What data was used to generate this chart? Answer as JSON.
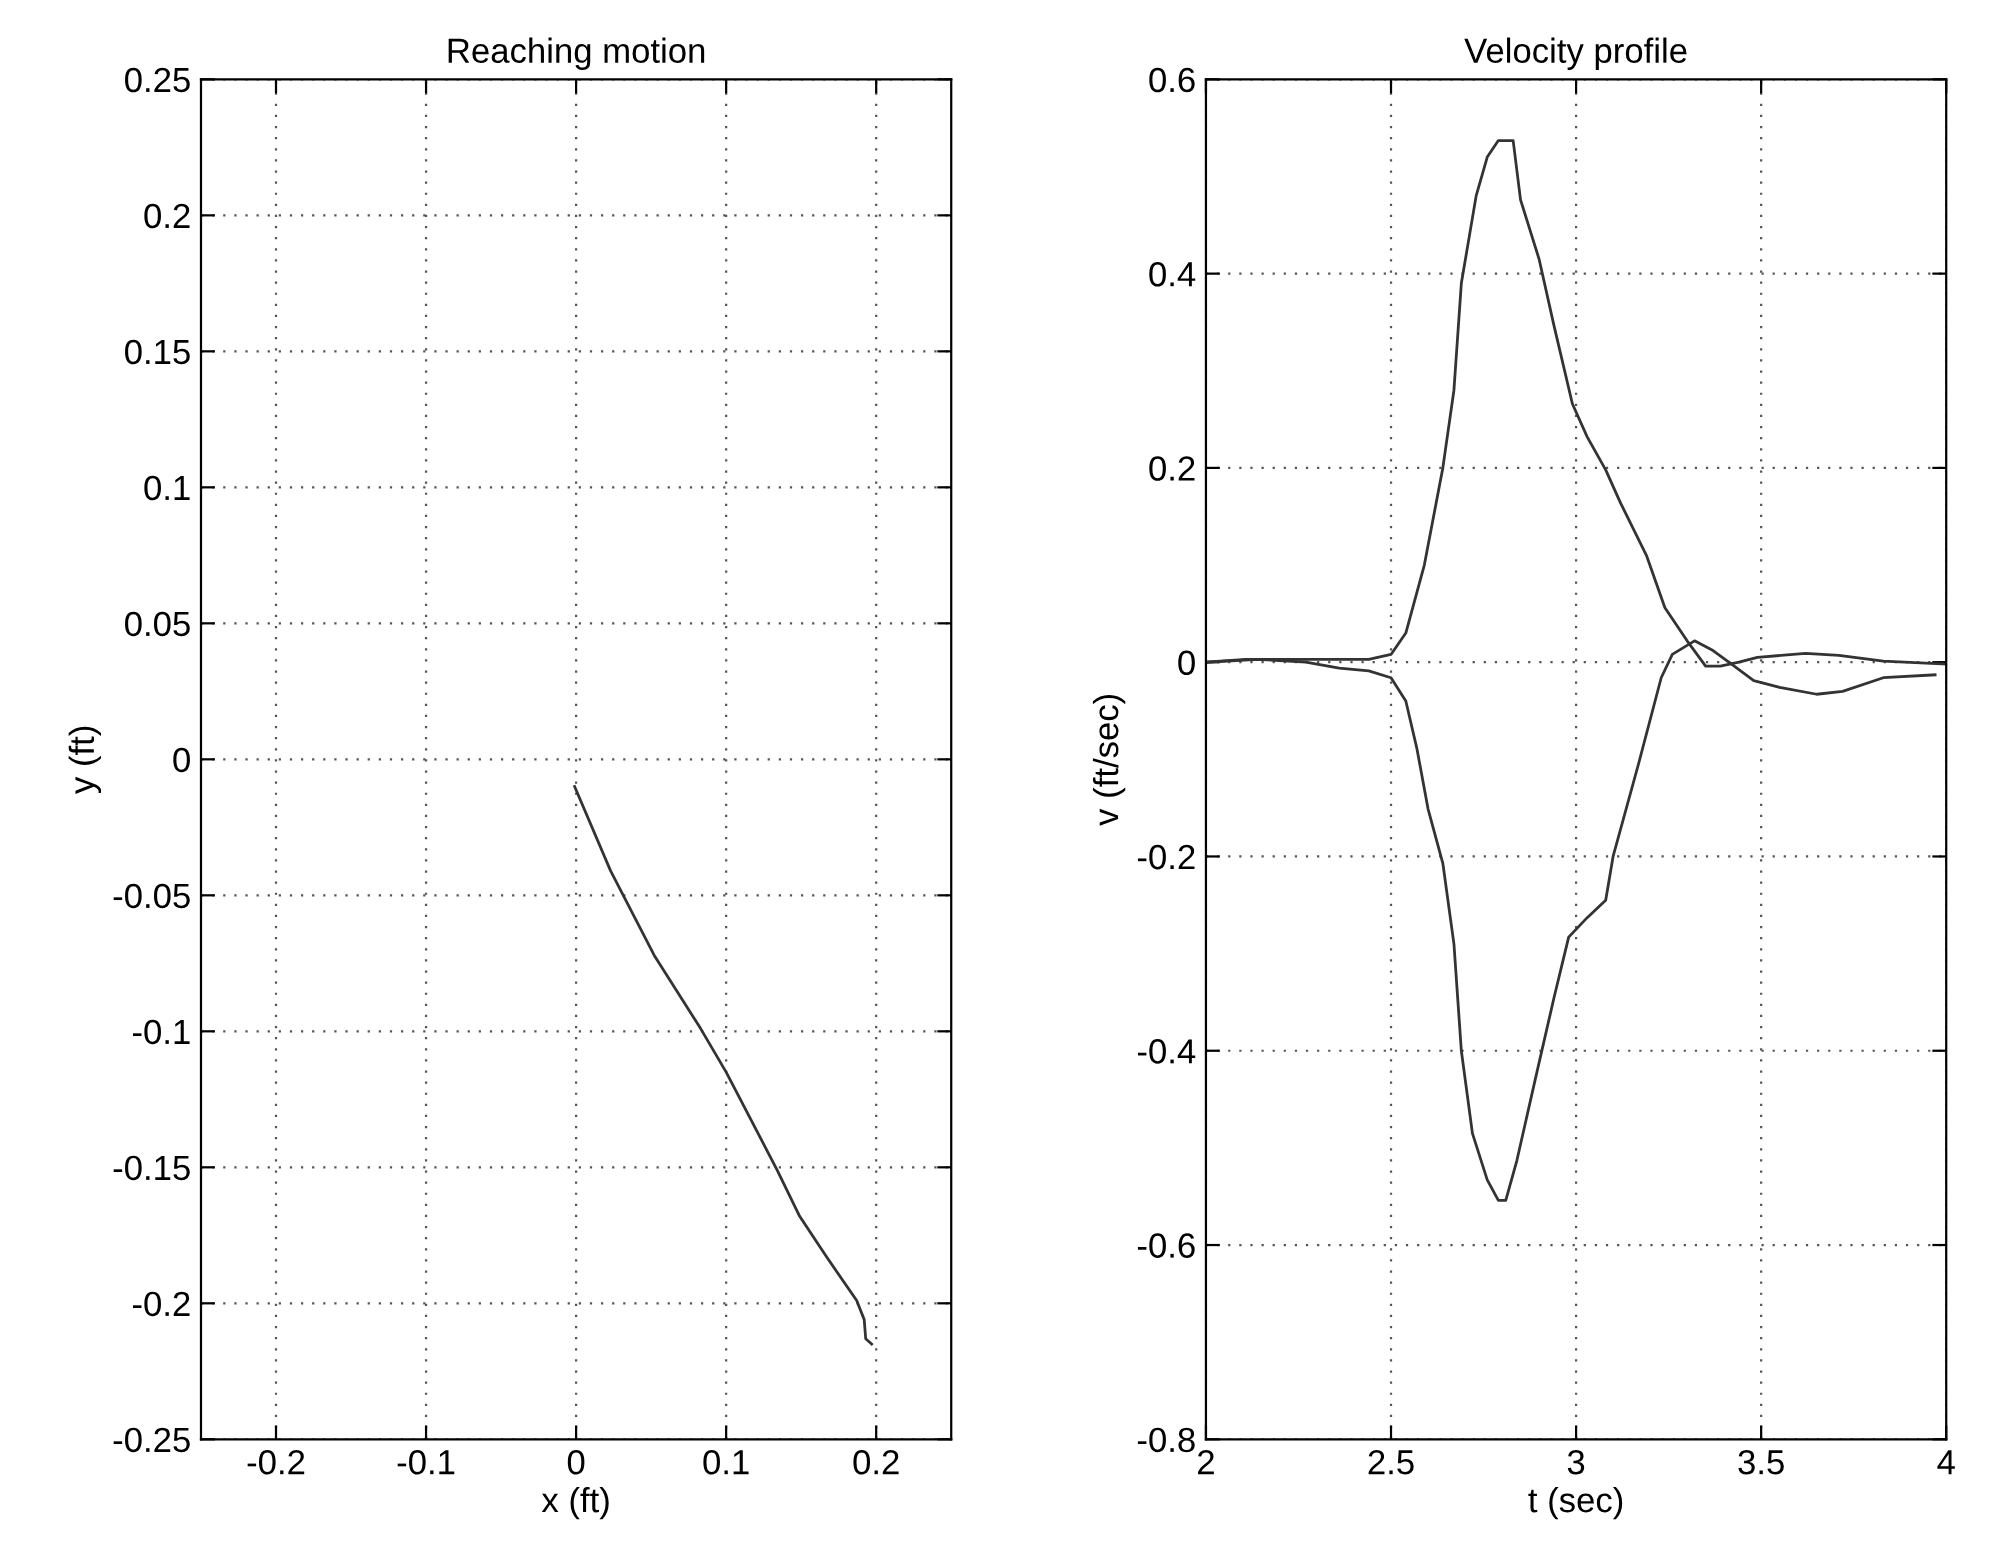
{
  "chart_data": [
    {
      "type": "line",
      "title": "Reaching motion",
      "xlabel": "x (ft)",
      "ylabel": "y (ft)",
      "xlim": [
        -0.25,
        0.25
      ],
      "ylim": [
        -0.25,
        0.25
      ],
      "xticks": [
        -0.2,
        -0.1,
        0,
        0.1,
        0.2
      ],
      "yticks": [
        -0.25,
        -0.2,
        -0.15,
        -0.1,
        -0.05,
        0,
        0.05,
        0.1,
        0.15,
        0.2,
        0.25
      ],
      "grid": true,
      "line_style": "solid",
      "series": [
        {
          "color": "#333333",
          "x": [
            -0.001,
            0.023,
            0.052,
            0.083,
            0.1,
            0.134,
            0.149,
            0.167,
            0.187,
            0.192,
            0.193,
            0.197
          ],
          "values": [
            -0.01,
            -0.041,
            -0.072,
            -0.099,
            -0.115,
            -0.151,
            -0.168,
            -0.183,
            -0.199,
            -0.206,
            -0.213,
            -0.215
          ]
        }
      ]
    },
    {
      "type": "line",
      "title": "Velocity profile",
      "xlabel": "t (sec)",
      "ylabel": "v (ft/sec)",
      "xlim": [
        2,
        4
      ],
      "ylim": [
        -0.8,
        0.6
      ],
      "xticks": [
        2,
        2.5,
        3,
        3.5,
        4
      ],
      "yticks": [
        -0.8,
        -0.6,
        -0.4,
        -0.2,
        0,
        0.2,
        0.4,
        0.6
      ],
      "grid": true,
      "line_style": "solid",
      "series": [
        {
          "color": "#333333",
          "x": [
            2,
            2.107,
            2.21,
            2.44,
            2.5,
            2.54,
            2.59,
            2.64,
            2.67,
            2.69,
            2.71,
            2.73,
            2.76,
            2.79,
            2.83,
            2.85,
            2.9,
            2.94,
            2.99,
            3.03,
            3.08,
            3.12,
            3.19,
            3.24,
            3.3,
            3.35,
            3.39,
            3.44,
            3.49,
            3.62,
            3.71,
            3.83,
            4
          ],
          "values": [
            0,
            0.003,
            0.003,
            0.003,
            0.008,
            0.03,
            0.1,
            0.2,
            0.28,
            0.39,
            0.435,
            0.48,
            0.52,
            0.537,
            0.537,
            0.476,
            0.415,
            0.347,
            0.266,
            0.232,
            0.198,
            0.164,
            0.11,
            0.056,
            0.022,
            -0.004,
            -0.004,
            0,
            0.005,
            0.009,
            0.007,
            0.001,
            -0.002
          ]
        },
        {
          "color": "#333333",
          "x": [
            2,
            2.14,
            2.27,
            2.36,
            2.44,
            2.5,
            2.54,
            2.57,
            2.6,
            2.64,
            2.67,
            2.69,
            2.72,
            2.76,
            2.79,
            2.81,
            2.84,
            2.89,
            2.94,
            2.98,
            3.03,
            3.08,
            3.1,
            3.17,
            3.23,
            3.26,
            3.32,
            3.37,
            3.42,
            3.48,
            3.55,
            3.65,
            3.72,
            3.83,
            3.97
          ],
          "values": [
            0,
            0.003,
            0,
            -0.006,
            -0.009,
            -0.016,
            -0.04,
            -0.089,
            -0.151,
            -0.207,
            -0.29,
            -0.4,
            -0.485,
            -0.533,
            -0.554,
            -0.554,
            -0.513,
            -0.429,
            -0.346,
            -0.283,
            -0.263,
            -0.245,
            -0.2,
            -0.103,
            -0.016,
            0.008,
            0.022,
            0.012,
            -0.002,
            -0.019,
            -0.026,
            -0.033,
            -0.03,
            -0.016,
            -0.013
          ]
        }
      ]
    }
  ]
}
